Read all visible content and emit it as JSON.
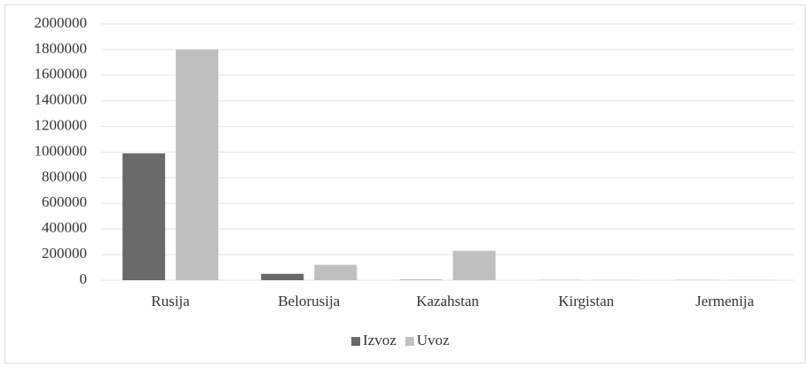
{
  "chart_data": {
    "type": "bar",
    "categories": [
      "Rusija",
      "Belorusija",
      "Kazahstan",
      "Kirgistan",
      "Jermenija"
    ],
    "series": [
      {
        "name": "Izvoz",
        "color": "#6a6a6a",
        "values": [
          990000,
          50000,
          3000,
          1000,
          1000
        ]
      },
      {
        "name": "Uvoz",
        "color": "#bfbfbf",
        "values": [
          1800000,
          120000,
          230000,
          2000,
          1000
        ]
      }
    ],
    "ylim": [
      0,
      2000000
    ],
    "yticks": [
      0,
      200000,
      400000,
      600000,
      800000,
      1000000,
      1200000,
      1400000,
      1600000,
      1800000,
      2000000
    ],
    "grid": true,
    "legend": "bottom"
  }
}
